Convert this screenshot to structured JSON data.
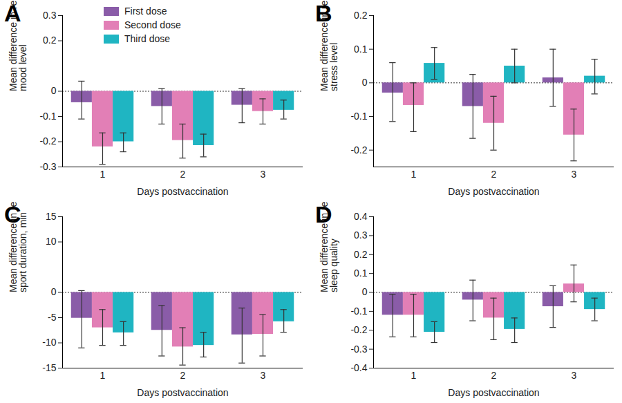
{
  "chart_data": [
    {
      "type": "bar",
      "title": "A",
      "x_label": "Days postvaccination",
      "y_label": "Mean difference in reported mood level",
      "categories": [
        "1",
        "2",
        "3"
      ],
      "ylim": [
        -0.3,
        0.3
      ],
      "yticks": [
        -0.3,
        -0.2,
        -0.1,
        0,
        0.2,
        0.3
      ],
      "grid": false,
      "legend": "top",
      "series": [
        {
          "name": "First dose",
          "color": "#8a5ca8",
          "values": [
            -0.045,
            -0.06,
            -0.055
          ],
          "error_low": [
            -0.11,
            -0.13,
            -0.125
          ],
          "error_high": [
            0.04,
            0.01,
            0.01
          ]
        },
        {
          "name": "Second dose",
          "color": "#e27fb6",
          "values": [
            -0.22,
            -0.195,
            -0.08
          ],
          "error_low": [
            -0.29,
            -0.265,
            -0.13
          ],
          "error_high": [
            -0.165,
            -0.13,
            -0.03
          ]
        },
        {
          "name": "Third dose",
          "color": "#1fb5c2",
          "values": [
            -0.2,
            -0.215,
            -0.075
          ],
          "error_low": [
            -0.24,
            -0.26,
            -0.11
          ],
          "error_high": [
            -0.165,
            -0.17,
            -0.035
          ]
        }
      ]
    },
    {
      "type": "bar",
      "title": "B",
      "x_label": "Days postvaccination",
      "y_label": "Mean difference in reported stress level",
      "categories": [
        "1",
        "2",
        "3"
      ],
      "ylim": [
        -0.25,
        0.2
      ],
      "yticks": [
        -0.2,
        -0.1,
        0,
        0.1,
        0.2
      ],
      "grid": false,
      "series": [
        {
          "name": "First dose",
          "color": "#8a5ca8",
          "values": [
            -0.03,
            -0.07,
            0.015
          ],
          "error_low": [
            -0.115,
            -0.165,
            -0.07
          ],
          "error_high": [
            0.06,
            0.025,
            0.1
          ]
        },
        {
          "name": "Second dose",
          "color": "#e27fb6",
          "values": [
            -0.067,
            -0.12,
            -0.155
          ],
          "error_low": [
            -0.145,
            -0.2,
            -0.232
          ],
          "error_high": [
            0.0,
            -0.04,
            -0.078
          ]
        },
        {
          "name": "Third dose",
          "color": "#1fb5c2",
          "values": [
            0.058,
            0.05,
            0.02
          ],
          "error_low": [
            0.01,
            0.0,
            -0.033
          ],
          "error_high": [
            0.105,
            0.1,
            0.07
          ]
        }
      ]
    },
    {
      "type": "bar",
      "title": "C",
      "x_label": "Days postvaccination",
      "y_label": "Mean difference in reported sport duration, min",
      "categories": [
        "1",
        "2",
        "3"
      ],
      "ylim": [
        -15,
        15
      ],
      "yticks": [
        -15,
        -10,
        -5,
        0,
        10,
        15
      ],
      "grid": false,
      "series": [
        {
          "name": "First dose",
          "color": "#8a5ca8",
          "values": [
            -5.1,
            -7.5,
            -8.4
          ],
          "error_low": [
            -11,
            -12.6,
            -14
          ],
          "error_high": [
            0.35,
            -2.6,
            -3.1
          ]
        },
        {
          "name": "Second dose",
          "color": "#e27fb6",
          "values": [
            -7,
            -10.8,
            -8.3
          ],
          "error_low": [
            -10.5,
            -14.4,
            -12.6
          ],
          "error_high": [
            -3.4,
            -7,
            -4.4
          ]
        },
        {
          "name": "Third dose",
          "color": "#1fb5c2",
          "values": [
            -8,
            -10.5,
            -5.8
          ],
          "error_low": [
            -10.5,
            -12.8,
            -7.9
          ],
          "error_high": [
            -5.8,
            -7.9,
            -3.4
          ]
        }
      ]
    },
    {
      "type": "bar",
      "title": "D",
      "x_label": "Days postvaccination",
      "y_label": "Mean difference in reported sleep quality",
      "categories": [
        "1",
        "2",
        "3"
      ],
      "ylim": [
        -0.4,
        0.4
      ],
      "yticks": [
        -0.4,
        -0.3,
        -0.2,
        -0.1,
        0,
        0.1,
        0.2,
        0.3,
        0.4
      ],
      "grid": false,
      "series": [
        {
          "name": "First dose",
          "color": "#8a5ca8",
          "values": [
            -0.12,
            -0.04,
            -0.075
          ],
          "error_low": [
            -0.235,
            -0.15,
            -0.185
          ],
          "error_high": [
            -0.01,
            0.065,
            0.035
          ]
        },
        {
          "name": "Second dose",
          "color": "#e27fb6",
          "values": [
            -0.12,
            -0.135,
            0.045
          ],
          "error_low": [
            -0.235,
            -0.25,
            -0.05
          ],
          "error_high": [
            -0.01,
            -0.03,
            0.145
          ]
        },
        {
          "name": "Third dose",
          "color": "#1fb5c2",
          "values": [
            -0.21,
            -0.195,
            -0.09
          ],
          "error_low": [
            -0.265,
            -0.265,
            -0.15
          ],
          "error_high": [
            -0.155,
            -0.135,
            -0.03
          ]
        }
      ]
    }
  ]
}
